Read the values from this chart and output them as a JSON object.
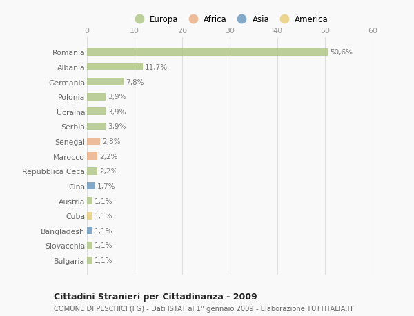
{
  "countries": [
    "Romania",
    "Albania",
    "Germania",
    "Polonia",
    "Ucraina",
    "Serbia",
    "Senegal",
    "Marocco",
    "Repubblica Ceca",
    "Cina",
    "Austria",
    "Cuba",
    "Bangladesh",
    "Slovacchia",
    "Bulgaria"
  ],
  "values": [
    50.6,
    11.7,
    7.8,
    3.9,
    3.9,
    3.9,
    2.8,
    2.2,
    2.2,
    1.7,
    1.1,
    1.1,
    1.1,
    1.1,
    1.1
  ],
  "labels": [
    "50,6%",
    "11,7%",
    "7,8%",
    "3,9%",
    "3,9%",
    "3,9%",
    "2,8%",
    "2,2%",
    "2,2%",
    "1,7%",
    "1,1%",
    "1,1%",
    "1,1%",
    "1,1%",
    "1,1%"
  ],
  "continents": [
    "Europa",
    "Europa",
    "Europa",
    "Europa",
    "Europa",
    "Europa",
    "Africa",
    "Africa",
    "Europa",
    "Asia",
    "Europa",
    "America",
    "Asia",
    "Europa",
    "Europa"
  ],
  "continent_colors": {
    "Europa": "#a8c07a",
    "Africa": "#e8a87c",
    "Asia": "#5b8db8",
    "America": "#e8c96d"
  },
  "legend_order": [
    "Europa",
    "Africa",
    "Asia",
    "America"
  ],
  "title": "Cittadini Stranieri per Cittadinanza - 2009",
  "subtitle": "COMUNE DI PESCHICI (FG) - Dati ISTAT al 1° gennaio 2009 - Elaborazione TUTTITALIA.IT",
  "xlim": [
    0,
    60
  ],
  "xticks": [
    0,
    10,
    20,
    30,
    40,
    50,
    60
  ],
  "background_color": "#f9f9f9",
  "bar_alpha": 0.75,
  "grid_color": "#e0e0e0",
  "label_color": "#777777",
  "ytick_color": "#666666"
}
